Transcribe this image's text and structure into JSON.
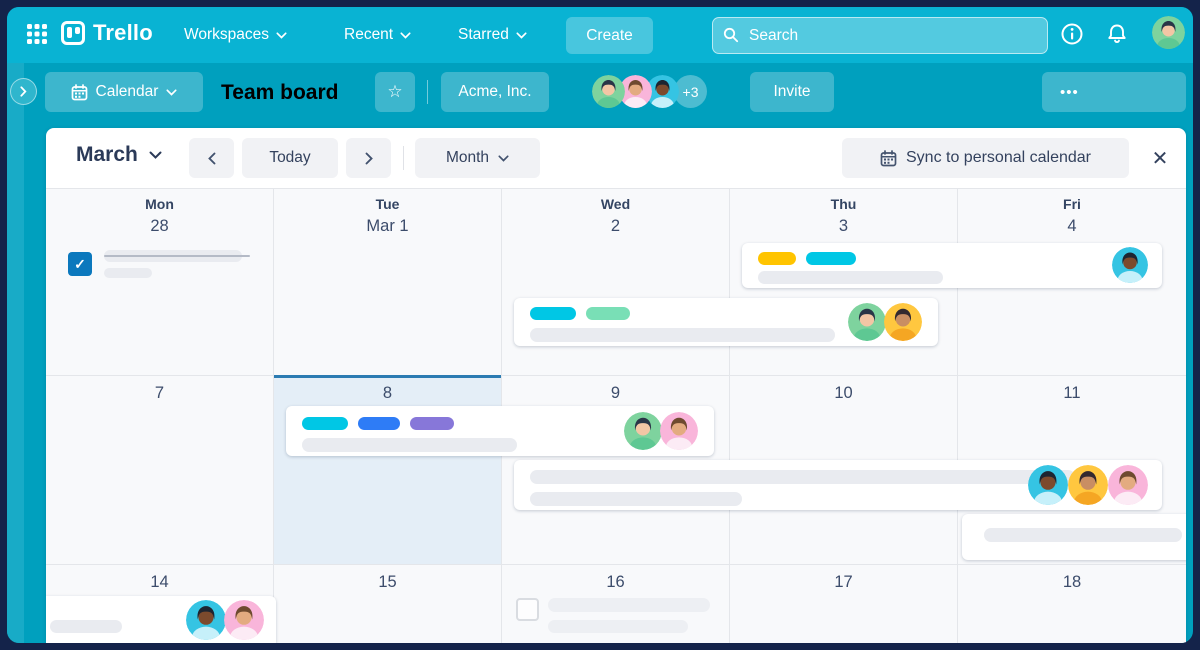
{
  "top_nav": {
    "brand": "Trello",
    "menus": [
      {
        "label": "Workspaces"
      },
      {
        "label": "Recent"
      },
      {
        "label": "Starred"
      }
    ],
    "create_label": "Create",
    "search_placeholder": "Search"
  },
  "board_bar": {
    "view_label": "Calendar",
    "title": "Team board",
    "org_label": "Acme, Inc.",
    "members_overflow": "+3",
    "invite_label": "Invite",
    "more_label": "•••"
  },
  "toolbar": {
    "month_label": "March",
    "today_label": "Today",
    "view_label": "Month",
    "sync_label": "Sync to personal calendar",
    "close_icon": "✕",
    "star_icon": "☆",
    "check_icon": "✓"
  },
  "calendar": {
    "day_headers": [
      "Mon",
      "Tue",
      "Wed",
      "Thu",
      "Fri"
    ],
    "rows": [
      [
        "28",
        "Mar 1",
        "2",
        "3",
        "4"
      ],
      [
        "7",
        "8",
        "9",
        "10",
        "11"
      ],
      [
        "14",
        "15",
        "16",
        "17",
        "18"
      ]
    ],
    "highlighted_date": "8"
  },
  "colors": {
    "frame": "#14234a",
    "top_nav": "#09b3d3",
    "board_bar": "#00a0be",
    "highlight_bg": "#e4eef7",
    "highlight_border": "#2b7bb2",
    "checkbox_blue": "#0b78bd",
    "chips": {
      "yellow": "#ffc400",
      "cyan": "#00c7e5",
      "mint": "#79dfb6",
      "blue": "#2e7cf6",
      "purple": "#8777d9"
    }
  },
  "avatars": {
    "green": {
      "bg": "#7ed39e",
      "skin": "#f3c6a5",
      "hair": "#2a3547",
      "shirt": "#5ec893"
    },
    "pink": {
      "bg": "#f9b5da",
      "skin": "#e3ab80",
      "hair": "#6e4a2f",
      "shirt": "#fcebf5"
    },
    "cyan": {
      "bg": "#35c4e3",
      "skin": "#7c4a2d",
      "hair": "#1d2531",
      "shirt": "#c6f0fa"
    },
    "yellow": {
      "bg": "#ffc73f",
      "skin": "#c98e63",
      "hair": "#33292f",
      "shirt": "#f5a623"
    }
  }
}
